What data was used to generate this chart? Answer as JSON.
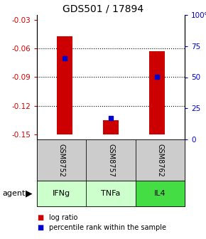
{
  "title": "GDS501 / 17894",
  "samples": [
    "GSM8752",
    "GSM8757",
    "GSM8762"
  ],
  "agents": [
    "IFNg",
    "TNFa",
    "IL4"
  ],
  "log_ratios": [
    -0.047,
    -0.135,
    -0.063
  ],
  "percentile_ranks": [
    65,
    17,
    50
  ],
  "ylim_left": [
    -0.155,
    -0.025
  ],
  "yticks_left": [
    -0.15,
    -0.12,
    -0.09,
    -0.06,
    -0.03
  ],
  "yticks_right": [
    0,
    25,
    50,
    75,
    100
  ],
  "bar_color": "#cc0000",
  "percentile_color": "#0000cc",
  "baseline": -0.15,
  "agent_colors": [
    "#ccffcc",
    "#ccffcc",
    "#44dd44"
  ],
  "sample_box_color": "#cccccc",
  "background_color": "#ffffff",
  "title_fontsize": 10,
  "tick_fontsize": 7.5,
  "bar_width": 0.35,
  "legend_bar_color": "#cc0000",
  "legend_pct_color": "#0000cc"
}
